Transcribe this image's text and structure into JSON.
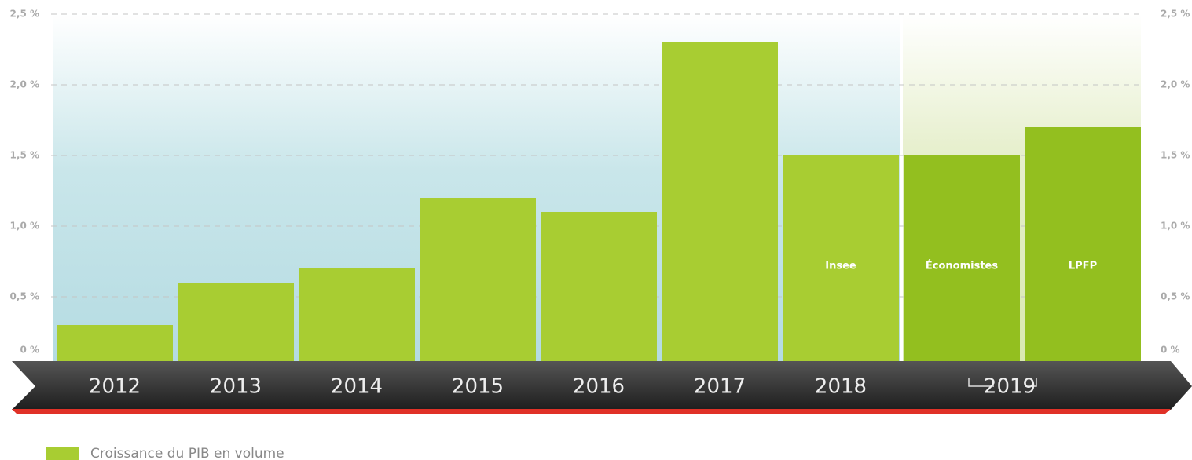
{
  "chart_data": {
    "type": "bar",
    "categories": [
      "2012",
      "2013",
      "2014",
      "2015",
      "2016",
      "2017",
      "2018",
      null,
      null
    ],
    "bar_labels": [
      null,
      null,
      null,
      null,
      null,
      null,
      "Insee",
      "Économistes",
      "LPFP"
    ],
    "group_label": "2019",
    "values": [
      0.3,
      0.6,
      0.7,
      1.2,
      1.1,
      2.3,
      1.5,
      1.5,
      1.7
    ],
    "colors": [
      "#a8cd32",
      "#a8cd32",
      "#a8cd32",
      "#a8cd32",
      "#a8cd32",
      "#a8cd32",
      "#a8cd32",
      "#93bf1f",
      "#93bf1f"
    ],
    "ylim": [
      0,
      2.5
    ],
    "yticks": [
      {
        "value": 0,
        "label": "0 %"
      },
      {
        "value": 0.5,
        "label": "0,5 %"
      },
      {
        "value": 1,
        "label": "1,0 %"
      },
      {
        "value": 1.5,
        "label": "1,5 %"
      },
      {
        "value": 2,
        "label": "2,0 %"
      },
      {
        "value": 2.5,
        "label": "2,5 %"
      }
    ],
    "grid": true,
    "legend": {
      "name": "Croissance du PIB en volume",
      "color": "#a8cd32"
    }
  }
}
